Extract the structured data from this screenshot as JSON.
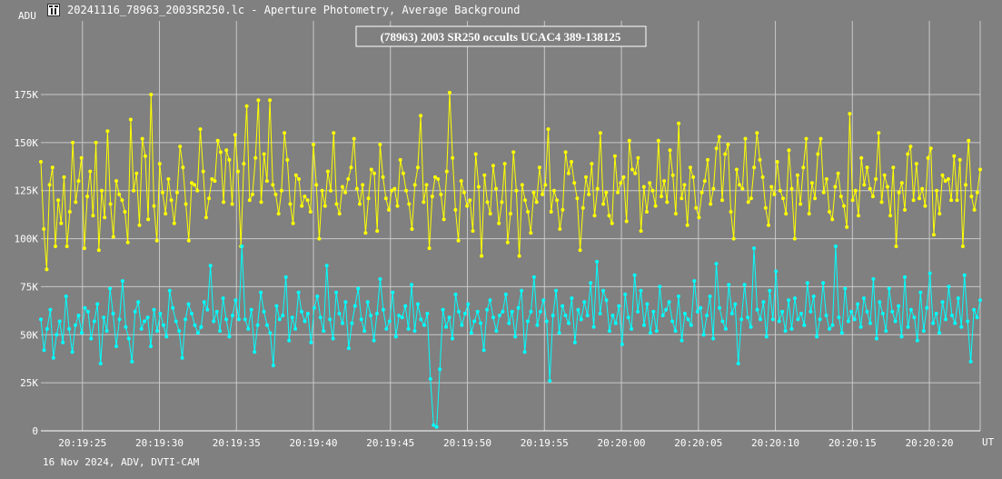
{
  "window": {
    "title": "20241116_78963_2003SR250.lc - Aperture Photometry, Average Background",
    "footer": "16 Nov 2024, ADV, DVTI-CAM"
  },
  "colors": {
    "background": "#808080",
    "grid": "#c8c8c8",
    "target": "#ffff00",
    "comparison": "#00ffff",
    "text": "#ffffff"
  },
  "chart_data": {
    "type": "line",
    "title": "(78963) 2003 SR250 occults UCAC4 389-138125",
    "ylabel": "ADU",
    "xlabel": "UT",
    "ylim": [
      0,
      210000
    ],
    "y_ticks": [
      {
        "value": 0,
        "label": "0"
      },
      {
        "value": 25000,
        "label": "25K"
      },
      {
        "value": 50000,
        "label": "50K"
      },
      {
        "value": 75000,
        "label": "75K"
      },
      {
        "value": 100000,
        "label": "100K"
      },
      {
        "value": 125000,
        "label": "125K"
      },
      {
        "value": 150000,
        "label": "150K"
      },
      {
        "value": 175000,
        "label": "175K"
      }
    ],
    "x_ticks": [
      "20:19:25",
      "20:19:30",
      "20:19:35",
      "20:19:40",
      "20:19:45",
      "20:19:50",
      "20:19:55",
      "20:20:00",
      "20:20:05",
      "20:20:10",
      "20:20:15",
      "20:20:20"
    ],
    "xlim": [
      "20:19:22.3",
      "20:20:23.3"
    ],
    "sample_interval_s": 0.1,
    "grid": true,
    "series": [
      {
        "color": "#ffff00",
        "mean": 122000,
        "sd": 17000,
        "values": [
          140000,
          105000,
          84000,
          128000,
          137000,
          96000,
          120000,
          108000,
          132000,
          96000,
          114000,
          150000,
          119000,
          130000,
          142000,
          95000,
          122000,
          135000,
          112000,
          150000,
          94000,
          125000,
          111000,
          156000,
          118000,
          101000,
          130000,
          123000,
          120000,
          114000,
          98000,
          162000,
          125000,
          134000,
          107000,
          152000,
          143000,
          110000,
          175000,
          117000,
          99000,
          139000,
          124000,
          113000,
          131000,
          120000,
          108000,
          124000,
          148000,
          137000,
          118000,
          99000,
          129000,
          128000,
          125000,
          157000,
          135000,
          111000,
          121000,
          131000,
          130000,
          151000,
          145000,
          119000,
          146000,
          141000,
          118000,
          154000,
          135000,
          96000,
          139000,
          169000,
          120000,
          123000,
          142000,
          172000,
          119000,
          144000,
          130000,
          172000,
          128000,
          123000,
          113000,
          125000,
          155000,
          141000,
          118000,
          108000,
          133000,
          131000,
          117000,
          122000,
          120000,
          114000,
          149000,
          128000,
          100000,
          125000,
          117000,
          135000,
          125000,
          155000,
          118000,
          113000,
          127000,
          124000,
          131000,
          137000,
          152000,
          126000,
          118000,
          128000,
          103000,
          121000,
          136000,
          134000,
          104000,
          149000,
          132000,
          121000,
          115000,
          125000,
          126000,
          117000,
          141000,
          134000,
          125000,
          118000,
          105000,
          128000,
          137000,
          164000,
          119000,
          128000,
          95000,
          122000,
          132000,
          131000,
          123000,
          110000,
          135000,
          176000,
          142000,
          115000,
          99000,
          130000,
          124000,
          117000,
          120000,
          104000,
          144000,
          127000,
          91000,
          133000,
          119000,
          113000,
          138000,
          126000,
          108000,
          119000,
          139000,
          98000,
          113000,
          145000,
          125000,
          91000,
          128000,
          120000,
          114000,
          103000,
          124000,
          119000,
          137000,
          123000,
          128000,
          157000,
          114000,
          125000,
          120000,
          105000,
          115000,
          145000,
          134000,
          140000,
          129000,
          121000,
          94000,
          116000,
          132000,
          123000,
          139000,
          112000,
          126000,
          155000,
          118000,
          124000,
          112000,
          108000,
          143000,
          124000,
          129000,
          132000,
          109000,
          151000,
          136000,
          134000,
          142000,
          104000,
          127000,
          114000,
          129000,
          125000,
          117000,
          151000,
          122000,
          130000,
          119000,
          146000,
          133000,
          113000,
          160000,
          121000,
          128000,
          107000,
          137000,
          132000,
          116000,
          111000,
          124000,
          130000,
          141000,
          118000,
          126000,
          147000,
          153000,
          120000,
          144000,
          149000,
          114000,
          100000,
          136000,
          128000,
          126000,
          152000,
          119000,
          121000,
          137000,
          155000,
          141000,
          132000,
          116000,
          107000,
          127000,
          123000,
          140000,
          125000,
          121000,
          113000,
          146000,
          126000,
          100000,
          133000,
          118000,
          137000,
          152000,
          113000,
          129000,
          121000,
          144000,
          152000,
          124000,
          131000,
          114000,
          110000,
          127000,
          134000,
          122000,
          117000,
          106000,
          165000,
          120000,
          125000,
          112000,
          142000,
          128000,
          137000,
          126000,
          122000,
          131000,
          155000,
          119000,
          133000,
          127000,
          112000,
          137000,
          96000,
          124000,
          129000,
          115000,
          144000,
          148000,
          120000,
          139000,
          121000,
          126000,
          117000,
          142000,
          147000,
          102000,
          125000,
          113000,
          133000,
          130000,
          131000,
          120000,
          143000,
          120000,
          141000,
          96000,
          128000,
          151000,
          122000,
          115000,
          124000,
          136000
        ]
      },
      {
        "color": "#00ffff",
        "mean": 60000,
        "sd": 9000,
        "values": [
          58000,
          42000,
          53000,
          63000,
          38000,
          50000,
          57000,
          46000,
          70000,
          53000,
          41000,
          55000,
          60000,
          51000,
          64000,
          62000,
          48000,
          57000,
          66000,
          35000,
          59000,
          52000,
          74000,
          61000,
          44000,
          58000,
          78000,
          54000,
          48000,
          36000,
          62000,
          67000,
          53000,
          57000,
          59000,
          44000,
          63000,
          52000,
          61000,
          55000,
          49000,
          73000,
          64000,
          57000,
          52000,
          38000,
          58000,
          66000,
          61000,
          55000,
          51000,
          54000,
          67000,
          63000,
          86000,
          57000,
          62000,
          52000,
          69000,
          58000,
          49000,
          60000,
          68000,
          58000,
          96000,
          58000,
          53000,
          63000,
          41000,
          55000,
          72000,
          62000,
          55000,
          51000,
          34000,
          65000,
          58000,
          60000,
          80000,
          47000,
          59000,
          53000,
          72000,
          62000,
          57000,
          61000,
          46000,
          64000,
          70000,
          59000,
          52000,
          86000,
          58000,
          48000,
          72000,
          61000,
          56000,
          67000,
          43000,
          56000,
          65000,
          74000,
          58000,
          52000,
          67000,
          60000,
          47000,
          61000,
          79000,
          63000,
          53000,
          57000,
          72000,
          49000,
          60000,
          59000,
          65000,
          53000,
          76000,
          52000,
          66000,
          58000,
          55000,
          61000,
          27000,
          3000,
          2000,
          32000,
          63000,
          54000,
          59000,
          48000,
          71000,
          62000,
          55000,
          61000,
          66000,
          51000,
          57000,
          62000,
          56000,
          42000,
          63000,
          68000,
          59000,
          52000,
          60000,
          62000,
          71000,
          56000,
          62000,
          49000,
          64000,
          73000,
          41000,
          57000,
          62000,
          80000,
          55000,
          62000,
          68000,
          57000,
          26000,
          60000,
          73000,
          51000,
          65000,
          60000,
          56000,
          69000,
          46000,
          63000,
          58000,
          67000,
          60000,
          77000,
          54000,
          88000,
          61000,
          73000,
          68000,
          52000,
          60000,
          56000,
          65000,
          45000,
          71000,
          59000,
          53000,
          81000,
          62000,
          73000,
          55000,
          66000,
          51000,
          62000,
          52000,
          75000,
          60000,
          63000,
          67000,
          57000,
          52000,
          70000,
          47000,
          61000,
          58000,
          55000,
          78000,
          62000,
          64000,
          50000,
          60000,
          70000,
          48000,
          87000,
          64000,
          57000,
          53000,
          76000,
          61000,
          66000,
          35000,
          58000,
          76000,
          59000,
          54000,
          95000,
          63000,
          58000,
          67000,
          49000,
          73000,
          58000,
          83000,
          57000,
          62000,
          52000,
          68000,
          53000,
          69000,
          58000,
          61000,
          55000,
          77000,
          62000,
          70000,
          49000,
          58000,
          77000,
          60000,
          53000,
          55000,
          96000,
          59000,
          51000,
          74000,
          57000,
          62000,
          58000,
          66000,
          54000,
          69000,
          62000,
          56000,
          79000,
          48000,
          67000,
          61000,
          52000,
          74000,
          62000,
          57000,
          65000,
          49000,
          80000,
          54000,
          63000,
          59000,
          47000,
          72000,
          52000,
          64000,
          82000,
          56000,
          61000,
          51000,
          67000,
          58000,
          75000,
          60000,
          56000,
          69000,
          54000,
          81000,
          57000,
          36000,
          63000,
          59000,
          68000
        ]
      }
    ]
  }
}
